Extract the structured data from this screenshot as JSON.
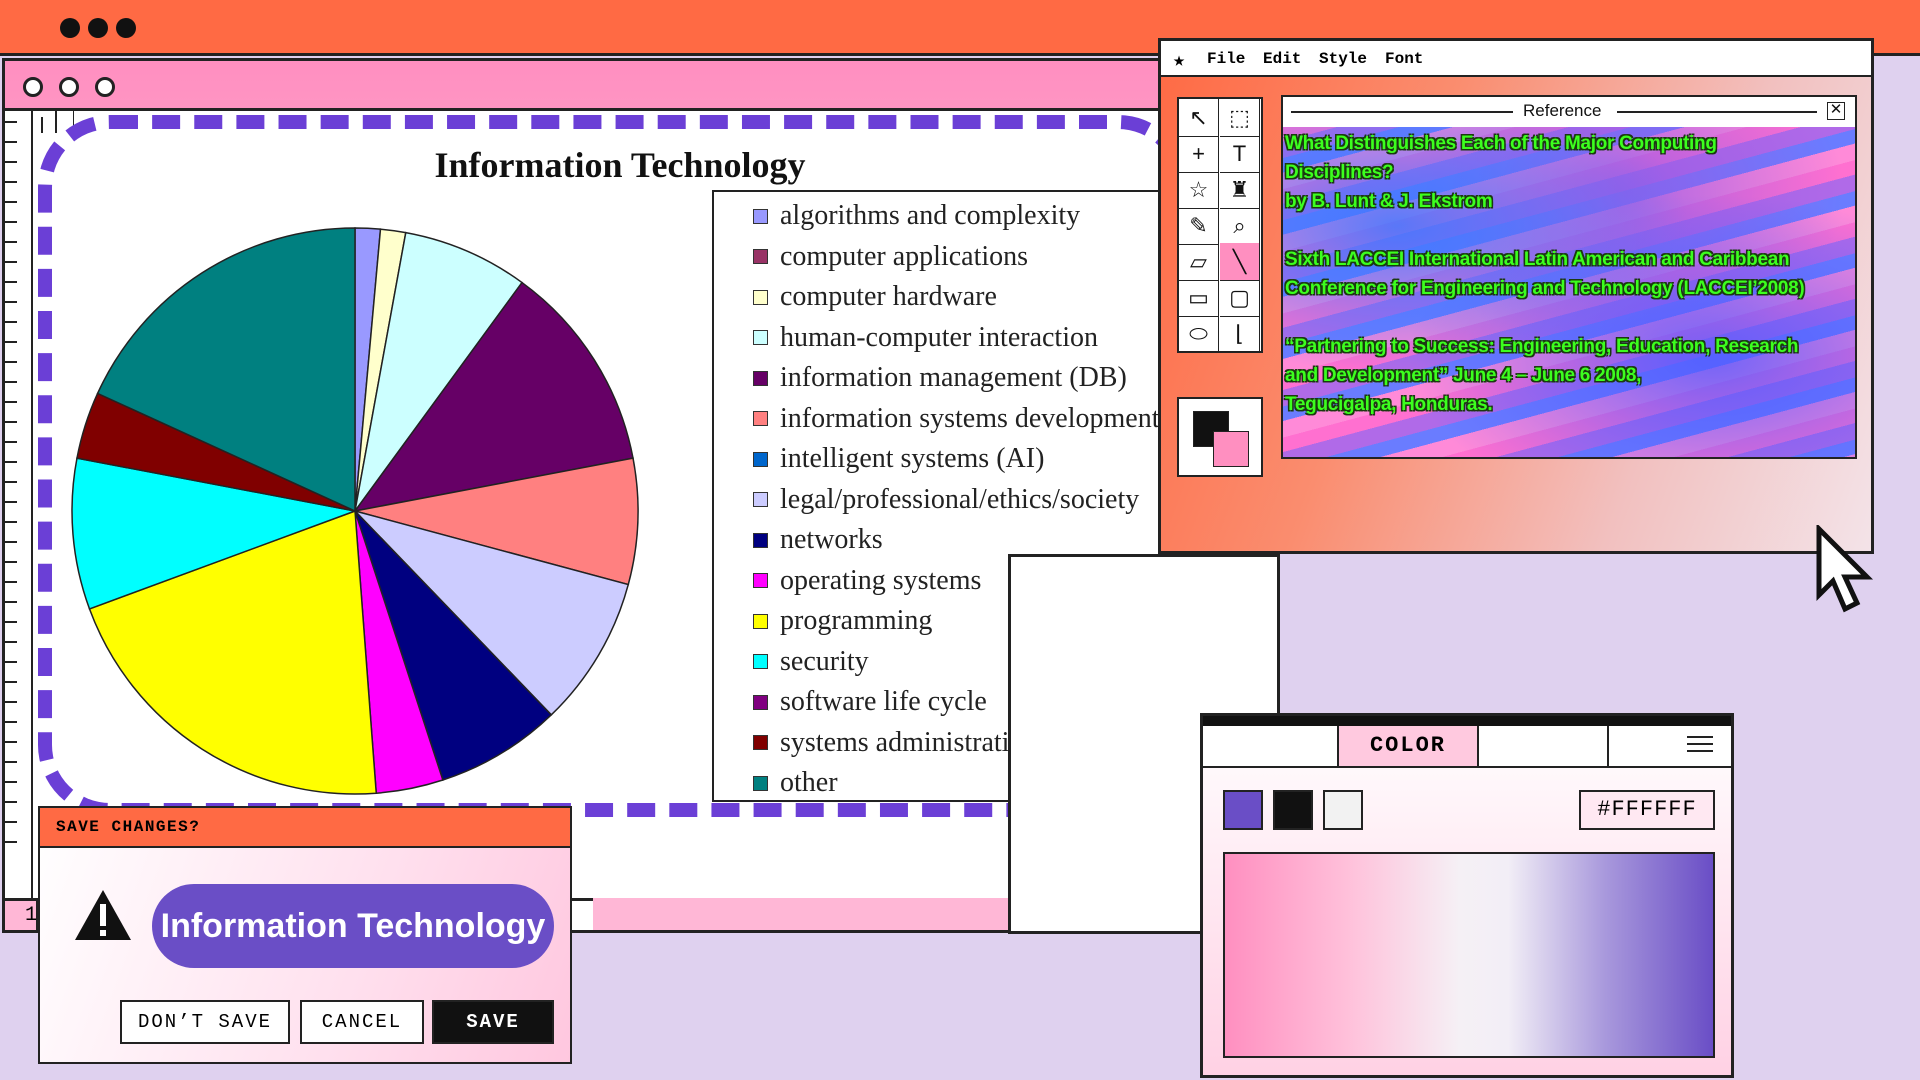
{
  "topbar": {
    "dots": 3
  },
  "main_window": {
    "page_number": "1"
  },
  "chart_data": {
    "type": "pie",
    "title": "Information Technology",
    "legend_position": "right",
    "series": [
      {
        "name": "algorithms and complexity",
        "value": 1.5,
        "color": "#9999ff"
      },
      {
        "name": "computer applications",
        "value": 0.0,
        "color": "#993366"
      },
      {
        "name": "computer hardware",
        "value": 1.5,
        "color": "#ffffcc"
      },
      {
        "name": "human-computer interaction",
        "value": 7.5,
        "color": "#ccffff"
      },
      {
        "name": "information management (DB)",
        "value": 12.5,
        "color": "#660066"
      },
      {
        "name": "information systems development",
        "value": 7.5,
        "color": "#ff8080"
      },
      {
        "name": "intelligent systems (AI)",
        "value": 0.0,
        "color": "#0066cc"
      },
      {
        "name": "legal/professional/ethics/society",
        "value": 9.0,
        "color": "#ccccff"
      },
      {
        "name": "networks",
        "value": 7.5,
        "color": "#000080"
      },
      {
        "name": "operating systems",
        "value": 4.0,
        "color": "#ff00ff"
      },
      {
        "name": "programming",
        "value": 21.5,
        "color": "#ffff00"
      },
      {
        "name": "security",
        "value": 9.0,
        "color": "#00ffff"
      },
      {
        "name": "software life cycle",
        "value": 0.0,
        "color": "#800080"
      },
      {
        "name": "systems administration",
        "value": 4.0,
        "color": "#800000"
      },
      {
        "name": "other",
        "value": 19.0,
        "color": "#008080"
      }
    ]
  },
  "reference_window": {
    "menu": [
      "File",
      "Edit",
      "Style",
      "Font"
    ],
    "panel_title": "Reference",
    "lines": [
      "What Distinguishes Each of the Major Computing",
      "Disciplines?",
      "by B. Lunt & J. Ekstrom",
      "",
      "Sixth LACCEI International Latin American and Caribbean",
      "Conference for Engineering and Technology (LACCEI’2008)",
      "",
      "“Partnering to Success: Engineering, Education, Research",
      "and Development” June 4 – June 6 2008,",
      "Tegucigalpa, Honduras."
    ],
    "tools": [
      "arrow-icon",
      "marquee-icon",
      "crosshair-icon",
      "text-icon",
      "star-icon",
      "brush-icon",
      "pencil-icon",
      "magnifier-icon",
      "eraser-icon",
      "line-icon",
      "rectangle-icon",
      "rounded-rect-icon",
      "ellipse-icon",
      "polygon-icon"
    ],
    "foreground_color": "#111111",
    "background_color": "#ff8fc0"
  },
  "color_window": {
    "tab_label": "COLOR",
    "swatches": [
      "#6a4ec6",
      "#111111",
      "#f2f2f2"
    ],
    "hex_value": "#FFFFFF"
  },
  "save_dialog": {
    "title": "SAVE CHANGES?",
    "filename": "Information Technology",
    "buttons": {
      "dont_save": "DON’T SAVE",
      "cancel": "CANCEL",
      "save": "SAVE"
    }
  }
}
